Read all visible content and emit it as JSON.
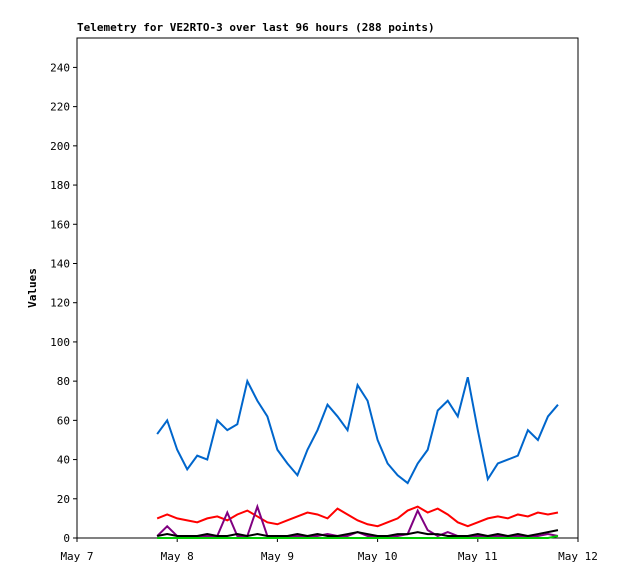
{
  "chart_data": {
    "type": "line",
    "title": "Telemetry for VE2RTO-3 over last 96 hours (288 points)",
    "y_label": "Values",
    "x": [
      7.8,
      7.9,
      8.0,
      8.1,
      8.2,
      8.3,
      8.4,
      8.5,
      8.6,
      8.7,
      8.8,
      8.9,
      9.0,
      9.1,
      9.2,
      9.3,
      9.4,
      9.5,
      9.6,
      9.7,
      9.8,
      9.9,
      10.0,
      10.1,
      10.2,
      10.3,
      10.4,
      10.5,
      10.6,
      10.7,
      10.8,
      10.9,
      11.0,
      11.1,
      11.2,
      11.3,
      11.4,
      11.5,
      11.6,
      11.7,
      11.8
    ],
    "series": [
      {
        "color": "#0066cc",
        "values": [
          53,
          60,
          45,
          35,
          42,
          40,
          60,
          55,
          58,
          80,
          70,
          62,
          45,
          38,
          32,
          45,
          55,
          68,
          62,
          55,
          78,
          70,
          50,
          38,
          32,
          28,
          38,
          45,
          65,
          70,
          62,
          82,
          55,
          30,
          38,
          40,
          42,
          55,
          50,
          62,
          68
        ]
      },
      {
        "color": "#ff0000",
        "values": [
          10,
          12,
          10,
          9,
          8,
          10,
          11,
          9,
          12,
          14,
          11,
          8,
          7,
          9,
          11,
          13,
          12,
          10,
          15,
          12,
          9,
          7,
          6,
          8,
          10,
          14,
          16,
          13,
          15,
          12,
          8,
          6,
          8,
          10,
          11,
          10,
          12,
          11,
          13,
          12,
          13
        ]
      },
      {
        "color": "#800080",
        "values": [
          1,
          6,
          1,
          1,
          1,
          1,
          1,
          13,
          1,
          1,
          16,
          1,
          1,
          1,
          1,
          1,
          1,
          2,
          1,
          1,
          3,
          1,
          1,
          1,
          1,
          2,
          14,
          4,
          1,
          3,
          1,
          1,
          1,
          1,
          1,
          1,
          1,
          1,
          1,
          2,
          1
        ]
      },
      {
        "color": "#000000",
        "values": [
          1,
          2,
          1,
          1,
          1,
          2,
          1,
          1,
          2,
          1,
          2,
          1,
          1,
          1,
          2,
          1,
          2,
          1,
          1,
          2,
          3,
          2,
          1,
          1,
          2,
          2,
          3,
          2,
          2,
          1,
          1,
          1,
          2,
          1,
          2,
          1,
          2,
          1,
          2,
          3,
          4
        ]
      },
      {
        "color": "#00cc00",
        "values": [
          0,
          0,
          0,
          0,
          0,
          0,
          0,
          0,
          0,
          0,
          0,
          0,
          0,
          0,
          0,
          0,
          0,
          0,
          0,
          0,
          0,
          0,
          0,
          0,
          0,
          0,
          0,
          0,
          0,
          0,
          0,
          0,
          0,
          0,
          0,
          0,
          0,
          0,
          0,
          0,
          1
        ]
      }
    ],
    "xlim": [
      7,
      12
    ],
    "xticks": [
      {
        "value": 7,
        "label": "May 7"
      },
      {
        "value": 8,
        "label": "May 8"
      },
      {
        "value": 9,
        "label": "May 9"
      },
      {
        "value": 10,
        "label": "May 10"
      },
      {
        "value": 11,
        "label": "May 11"
      },
      {
        "value": 12,
        "label": "May 12"
      }
    ],
    "ylim": [
      0,
      255
    ],
    "yticks": [
      0,
      20,
      40,
      60,
      80,
      100,
      120,
      140,
      160,
      180,
      200,
      220,
      240
    ]
  }
}
